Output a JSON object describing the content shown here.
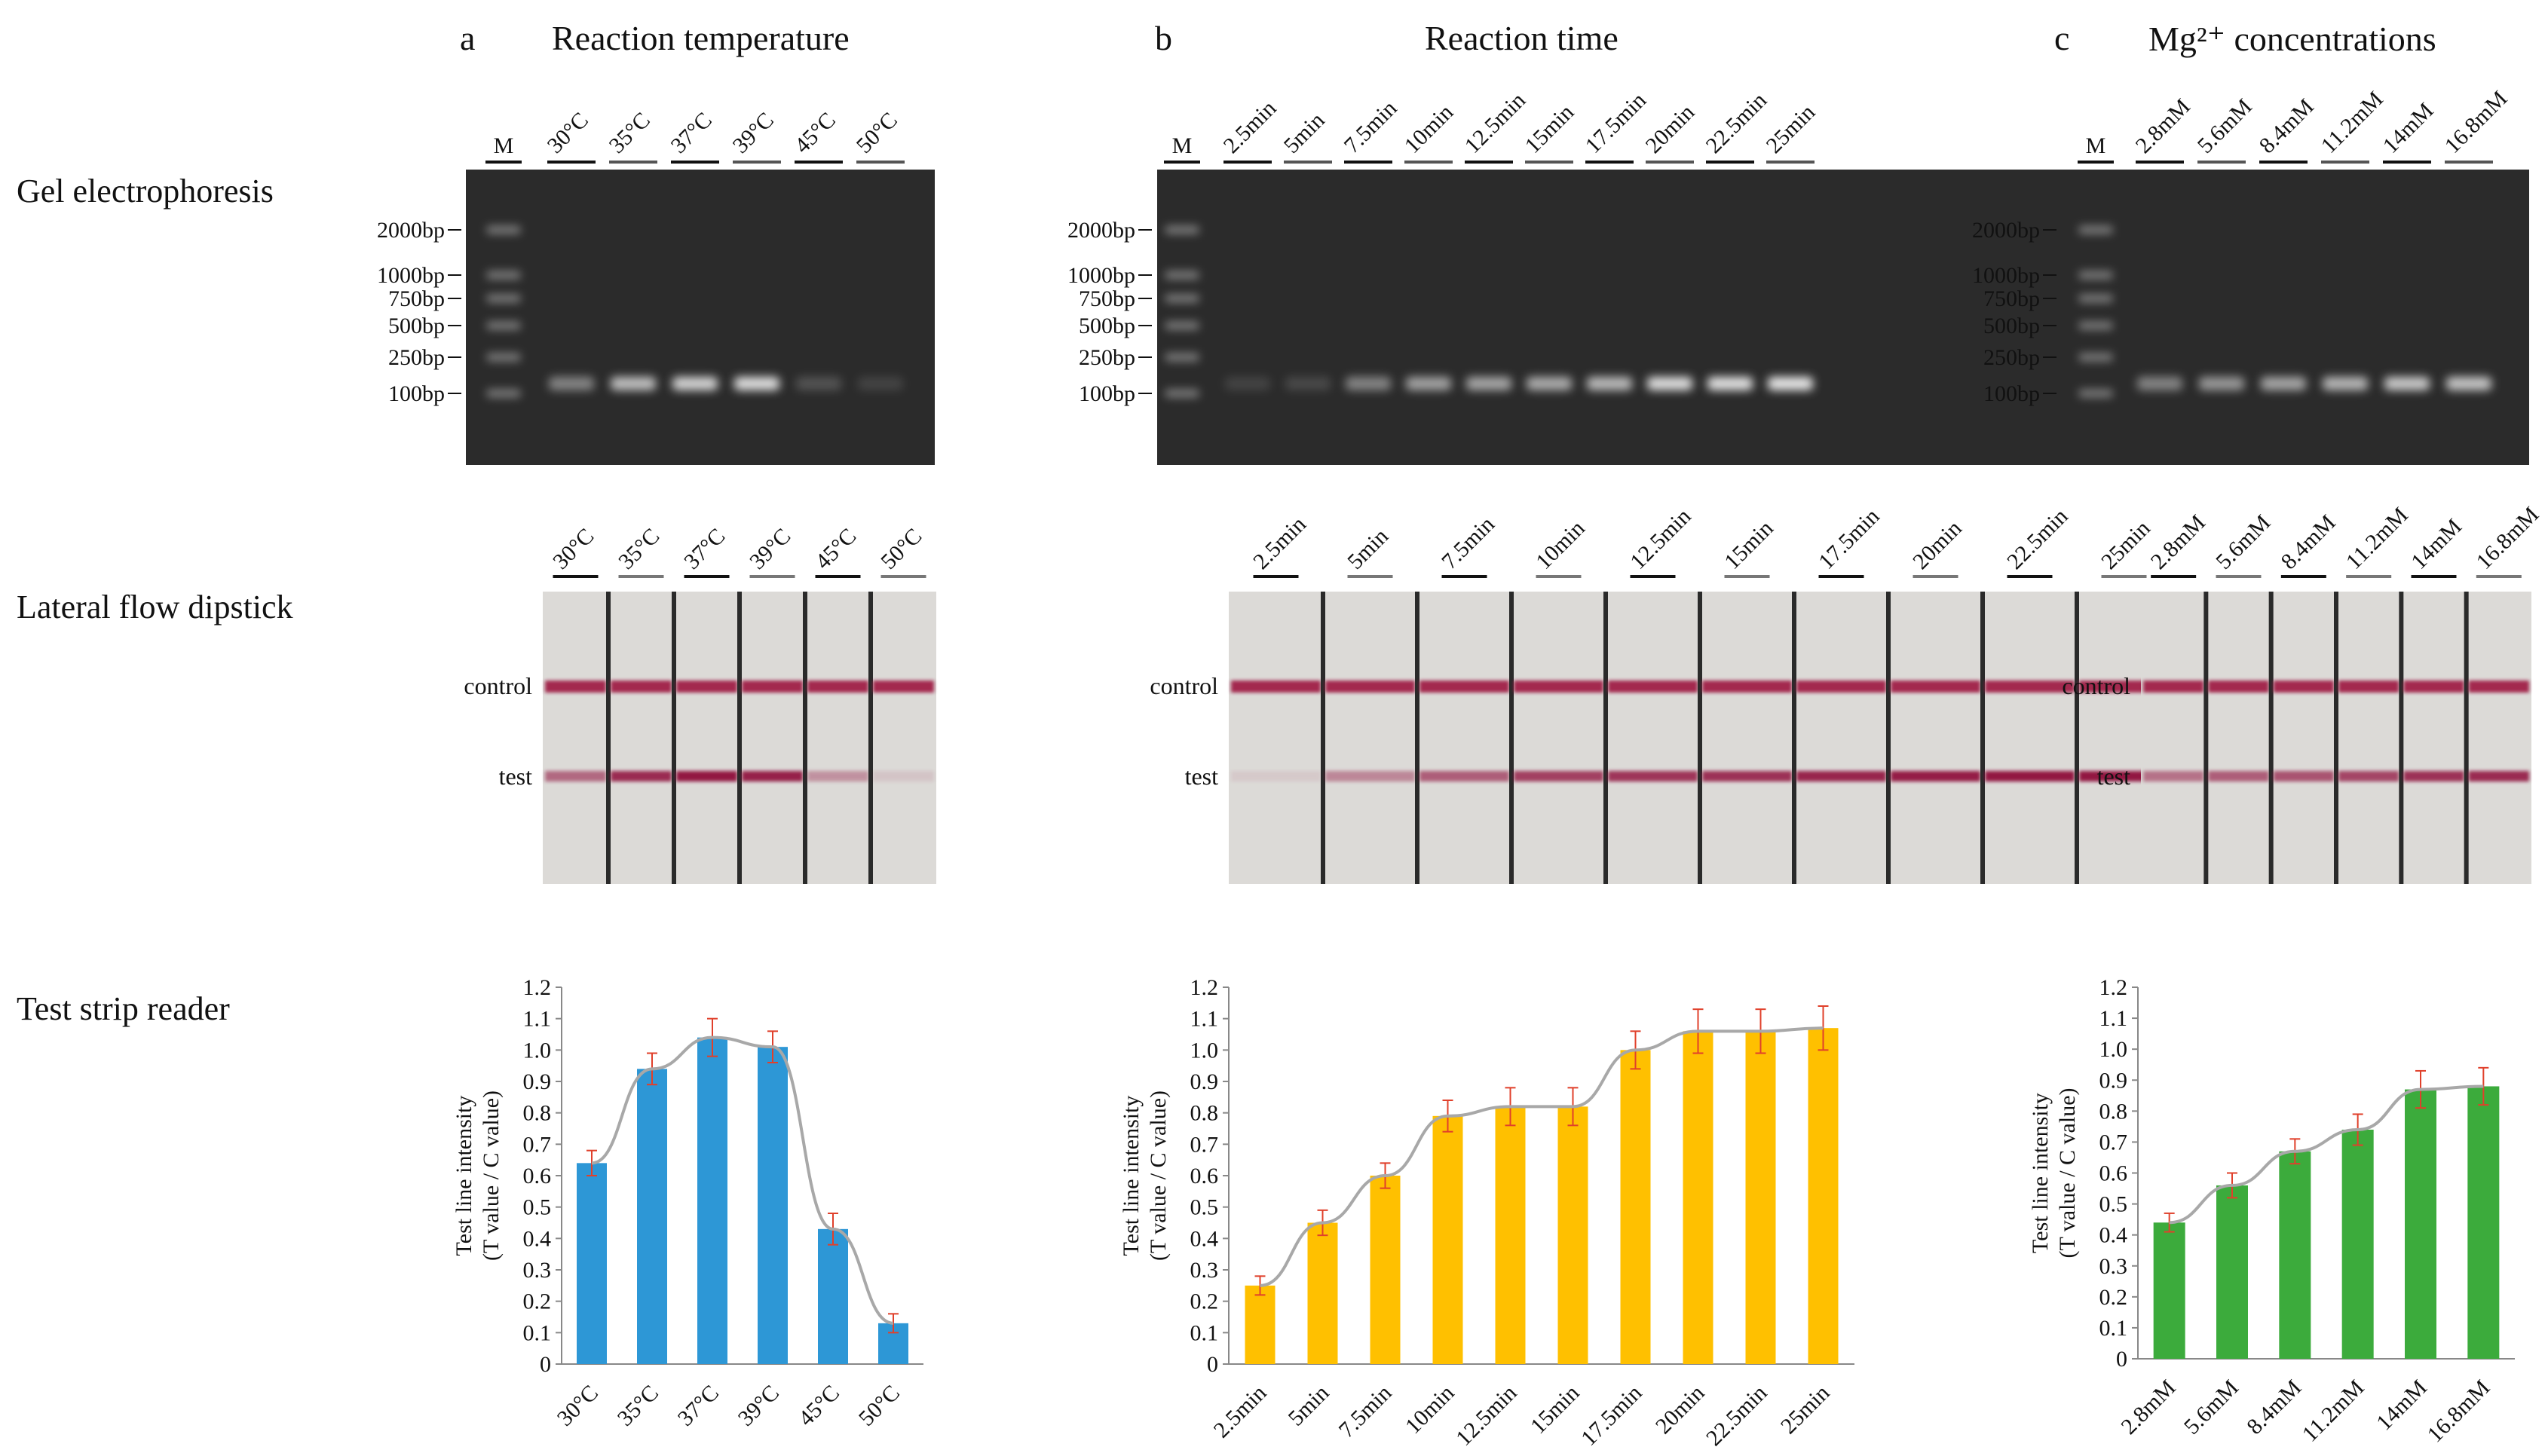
{
  "row_labels": {
    "gel": "Gel electrophoresis",
    "lfd": "Lateral flow dipstick",
    "reader": "Test strip reader"
  },
  "panels": [
    {
      "letter": "a",
      "title": "Reaction temperature",
      "marker_label": "M",
      "ladder": [
        "2000bp",
        "1000bp",
        "750bp",
        "500bp",
        "250bp",
        "100bp"
      ],
      "lanes": [
        "30°C",
        "35°C",
        "37°C",
        "39°C",
        "45°C",
        "50°C"
      ],
      "gel_band_intensity": [
        0.45,
        0.75,
        0.85,
        0.9,
        0.2,
        0.12
      ],
      "lfd_test_intensity": [
        0.55,
        0.85,
        0.95,
        0.9,
        0.35,
        0.1
      ],
      "lfd_control_label": "control",
      "lfd_test_label": "test",
      "color": "#2d97d6"
    },
    {
      "letter": "b",
      "title": "Reaction time",
      "marker_label": "M",
      "ladder": [
        "2000bp",
        "1000bp",
        "750bp",
        "500bp",
        "250bp",
        "100bp"
      ],
      "lanes": [
        "2.5min",
        "5min",
        "7.5min",
        "10min",
        "12.5min",
        "15min",
        "17.5min",
        "20min",
        "22.5min",
        "25min"
      ],
      "gel_band_intensity": [
        0.12,
        0.15,
        0.45,
        0.6,
        0.62,
        0.65,
        0.72,
        0.9,
        0.92,
        0.95
      ],
      "lfd_test_intensity": [
        0.08,
        0.4,
        0.6,
        0.75,
        0.8,
        0.82,
        0.88,
        0.92,
        0.95,
        0.95
      ],
      "lfd_control_label": "control",
      "lfd_test_label": "test",
      "color": "#ffc000"
    },
    {
      "letter": "c",
      "title": "Mg²⁺ concentrations",
      "marker_label": "M",
      "ladder": [
        "2000bp",
        "1000bp",
        "750bp",
        "500bp",
        "250bp",
        "100bp"
      ],
      "lanes": [
        "2.8mM",
        "5.6mM",
        "8.4mM",
        "11.2mM",
        "14mM",
        "16.8mM"
      ],
      "gel_band_intensity": [
        0.45,
        0.55,
        0.62,
        0.7,
        0.8,
        0.78
      ],
      "lfd_test_intensity": [
        0.5,
        0.6,
        0.65,
        0.72,
        0.82,
        0.85
      ],
      "lfd_control_label": "control",
      "lfd_test_label": "test",
      "color": "#3cab3c"
    }
  ],
  "chart_data": [
    {
      "type": "bar",
      "categories": [
        "30°C",
        "35°C",
        "37°C",
        "39°C",
        "45°C",
        "50°C"
      ],
      "values": [
        0.64,
        0.94,
        1.04,
        1.01,
        0.43,
        0.13
      ],
      "errors": [
        0.04,
        0.05,
        0.06,
        0.05,
        0.05,
        0.03
      ],
      "trend": true,
      "ylabel": "Test line intensity",
      "ylabel2": "(T value / C value)",
      "ylim": [
        0,
        1.2
      ],
      "yticks": [
        "0",
        "0.1",
        "0.2",
        "0.3",
        "0.4",
        "0.5",
        "0.6",
        "0.7",
        "0.8",
        "0.9",
        "1.0",
        "1.1",
        "1.2"
      ],
      "color": "#2d97d6"
    },
    {
      "type": "bar",
      "categories": [
        "2.5min",
        "5min",
        "7.5min",
        "10min",
        "12.5min",
        "15min",
        "17.5min",
        "20min",
        "22.5min",
        "25min"
      ],
      "values": [
        0.25,
        0.45,
        0.6,
        0.79,
        0.82,
        0.82,
        1.0,
        1.06,
        1.06,
        1.07
      ],
      "errors": [
        0.03,
        0.04,
        0.04,
        0.05,
        0.06,
        0.06,
        0.06,
        0.07,
        0.07,
        0.07
      ],
      "trend": true,
      "ylabel": "Test line intensity",
      "ylabel2": "(T value / C value)",
      "ylim": [
        0,
        1.2
      ],
      "yticks": [
        "0",
        "0.1",
        "0.2",
        "0.3",
        "0.4",
        "0.5",
        "0.6",
        "0.7",
        "0.8",
        "0.9",
        "1.0",
        "1.1",
        "1.2"
      ],
      "color": "#ffc000"
    },
    {
      "type": "bar",
      "categories": [
        "2.8mM",
        "5.6mM",
        "8.4mM",
        "11.2mM",
        "14mM",
        "16.8mM"
      ],
      "values": [
        0.44,
        0.56,
        0.67,
        0.74,
        0.87,
        0.88
      ],
      "errors": [
        0.03,
        0.04,
        0.04,
        0.05,
        0.06,
        0.06
      ],
      "trend": true,
      "ylabel": "Test line intensity",
      "ylabel2": "(T value / C value)",
      "ylim": [
        0,
        1.2
      ],
      "yticks": [
        "0",
        "0.1",
        "0.2",
        "0.3",
        "0.4",
        "0.5",
        "0.6",
        "0.7",
        "0.8",
        "0.9",
        "1.0",
        "1.1",
        "1.2"
      ],
      "color": "#3cab3c"
    }
  ]
}
